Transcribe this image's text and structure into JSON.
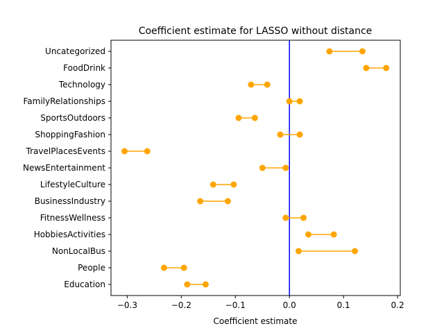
{
  "chart_data": {
    "type": "dumbbell",
    "title": "Coefficient estimate for LASSO without distance",
    "xlabel": "Coefficient estimate",
    "ylabel": "",
    "xlim": [
      -0.33,
      0.205
    ],
    "xticks": [
      -0.3,
      -0.2,
      -0.1,
      0.0,
      0.1,
      0.2
    ],
    "xtick_labels": [
      "−0.3",
      "−0.2",
      "−0.1",
      "0.0",
      "0.1",
      "0.2"
    ],
    "reference_line": {
      "x": 0.0,
      "color": "#0000ff"
    },
    "marker_color": "#ffa500",
    "grid": false,
    "categories": [
      "Uncategorized",
      "FoodDrink",
      "Technology",
      "FamilyRelationships",
      "SportsOutdoors",
      "ShoppingFashion",
      "TravelPlacesEvents",
      "NewsEntertainment",
      "LifestyleCulture",
      "BusinessIndustry",
      "FitnessWellness",
      "HobbiesActivities",
      "NonLocalBus",
      "People",
      "Education"
    ],
    "low": [
      0.074,
      0.142,
      -0.071,
      0.0,
      -0.094,
      -0.017,
      -0.305,
      -0.05,
      -0.141,
      -0.165,
      -0.007,
      0.035,
      0.017,
      -0.232,
      -0.189
    ],
    "high": [
      0.135,
      0.179,
      -0.041,
      0.019,
      -0.064,
      0.019,
      -0.263,
      -0.007,
      -0.103,
      -0.114,
      0.026,
      0.082,
      0.121,
      -0.195,
      -0.155
    ]
  }
}
